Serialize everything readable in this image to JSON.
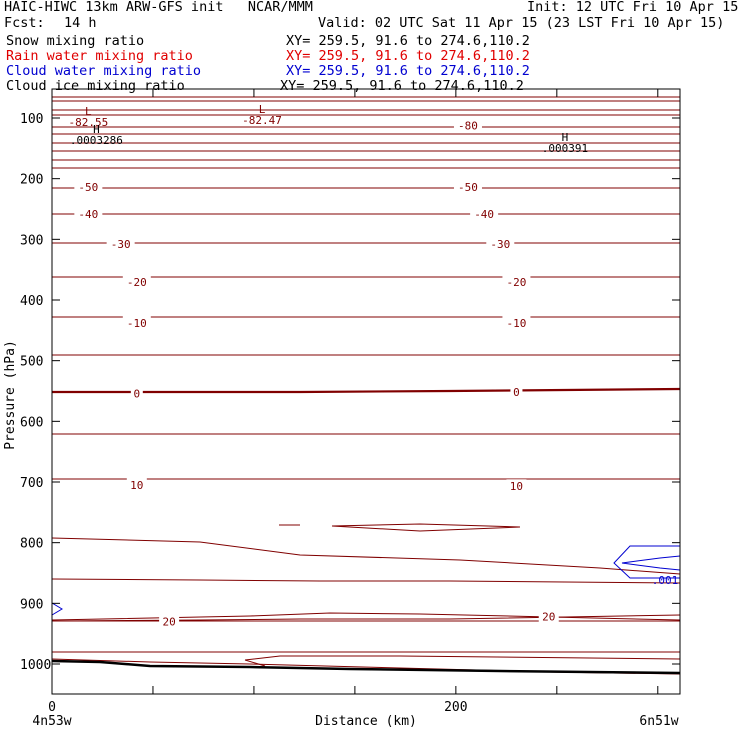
{
  "header": {
    "title": "HAIC-HIWC 13km ARW-GFS init   NCAR/MMM",
    "init": "Init: 12 UTC Fri 10 Apr 15",
    "fcst_label": "Fcst:",
    "fcst_value": "14 h",
    "valid": "Valid: 02 UTC Sat 11 Apr 15 (23 LST Fri 10 Apr 15)",
    "fields": [
      {
        "name": "Snow mixing ratio",
        "xy": "XY= 259.5, 91.6 to 274.6,110.2",
        "color": "#000000"
      },
      {
        "name": "Rain water mixing ratio",
        "xy": "XY= 259.5, 91.6 to 274.6,110.2",
        "color": "#e00000"
      },
      {
        "name": "Cloud water mixing ratio",
        "xy": "XY= 259.5, 91.6 to 274.6,110.2",
        "color": "#0000d0"
      },
      {
        "name": "Cloud ice mixing ratio",
        "xy": "XY= 259.5, 91.6 to 274.6,110.2",
        "color": "#000000"
      }
    ]
  },
  "chart_data": {
    "type": "contour",
    "ylabel": "Pressure (hPa)",
    "xlabel": "Distance (km)",
    "x_tick_labels": [
      "0",
      "200"
    ],
    "x_ticks": [
      0,
      50,
      100,
      150,
      200,
      250,
      300
    ],
    "y_tick_labels": [
      "100",
      "200",
      "300",
      "400",
      "500",
      "600",
      "700",
      "800",
      "900",
      "1000"
    ],
    "ylim": [
      1050,
      60
    ],
    "xlim": [
      0,
      311
    ],
    "endpoints": {
      "left": "4n53w",
      "right": "6n51w"
    },
    "temperature_color": "#800000",
    "temperature_labels": [
      {
        "text": "-80",
        "x": 206,
        "p": 112
      },
      {
        "text": "-50",
        "x": 18,
        "p": 214
      },
      {
        "text": "-50",
        "x": 206,
        "p": 214
      },
      {
        "text": "-40",
        "x": 18,
        "p": 258
      },
      {
        "text": "-40",
        "x": 214,
        "p": 258
      },
      {
        "text": "-30",
        "x": 34,
        "p": 308
      },
      {
        "text": "-30",
        "x": 222,
        "p": 308
      },
      {
        "text": "-20",
        "x": 42,
        "p": 370
      },
      {
        "text": "-20",
        "x": 230,
        "p": 370
      },
      {
        "text": "-10",
        "x": 42,
        "p": 438
      },
      {
        "text": "-10",
        "x": 230,
        "p": 438
      },
      {
        "text": "0",
        "x": 42,
        "p": 554
      },
      {
        "text": "0",
        "x": 230,
        "p": 552
      },
      {
        "text": "10",
        "x": 42,
        "p": 705
      },
      {
        "text": "10",
        "x": 230,
        "p": 707
      },
      {
        "text": "20",
        "x": 58,
        "p": 930
      },
      {
        "text": "20",
        "x": 246,
        "p": 922
      }
    ],
    "extrema": [
      {
        "type": "L",
        "value": "-82.55",
        "x": 18,
        "p": 95
      },
      {
        "type": "L",
        "value": "-82.47",
        "x": 104,
        "p": 92
      },
      {
        "type": "H",
        "value": ".0003286",
        "x": 22,
        "p": 125
      },
      {
        "type": "H",
        "value": ".000391",
        "x": 254,
        "p": 138
      }
    ],
    "cloud_water_label": ".001",
    "cloud_water_color": "#0000d0"
  }
}
